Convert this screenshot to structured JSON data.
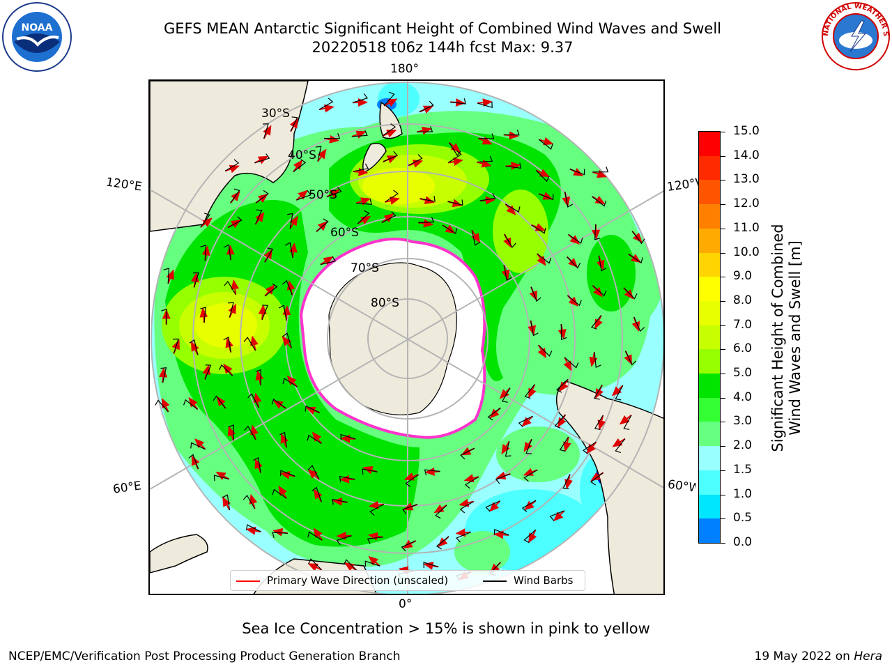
{
  "header": {
    "title_line1": "GEFS MEAN Antarctic Significant Height of Combined Wind Waves and Swell",
    "title_line2": "20220518 t06z 144h fcst   Max: 9.37"
  },
  "logos": {
    "left": "noaa-logo",
    "right": "national-weather-service-logo",
    "noaa_text": "NOAA",
    "nws_text": "NATIONAL WEATHER SERVICE"
  },
  "map": {
    "projection": "south polar stereographic",
    "lon_labels": {
      "top": "180°",
      "bottom": "0°",
      "upper_left": "120°E",
      "upper_right": "120°W",
      "lower_left": "60°E",
      "lower_right": "60°W"
    },
    "lat_labels": [
      "30°S",
      "40°S",
      "50°S",
      "60°S",
      "70°S",
      "80°S"
    ],
    "colors": {
      "land": "#efebdc",
      "ice": "#ffffff",
      "grid": "#b4b4b4",
      "arrow": "#e00000",
      "barb": "#000000",
      "sea_ice_edge": "#ff33cc"
    }
  },
  "legend": {
    "wave_label": "Primary Wave Direction (unscaled)",
    "barb_label": "Wind Barbs",
    "wave_color": "#ff0000",
    "barb_color": "#000000"
  },
  "colorbar": {
    "title_line1": "Significant Height of Combined",
    "title_line2": "Wind Waves and Swell [m]",
    "ticks": [
      "15.0",
      "14.0",
      "13.0",
      "12.0",
      "11.0",
      "10.0",
      "9.0",
      "8.0",
      "7.0",
      "6.0",
      "5.0",
      "4.0",
      "3.0",
      "2.0",
      "1.5",
      "1.0",
      "0.5",
      "0.0"
    ],
    "colors_top_to_bottom": [
      "#ff0000",
      "#ff2a00",
      "#ff5500",
      "#ff8000",
      "#ffaa00",
      "#ffd400",
      "#ffff00",
      "#e8ff00",
      "#c8ff00",
      "#96ff00",
      "#00e400",
      "#33ff33",
      "#66ff80",
      "#99ffff",
      "#4dffff",
      "#00e6ff",
      "#0080ff",
      "#0000ff"
    ]
  },
  "caption": "Sea Ice Concentration > 15% is shown in pink to yellow",
  "footer": {
    "left": "NCEP/EMC/Verification Post Processing Product Generation Branch",
    "right_date": "19 May 2022 on",
    "right_machine": "Hera"
  }
}
